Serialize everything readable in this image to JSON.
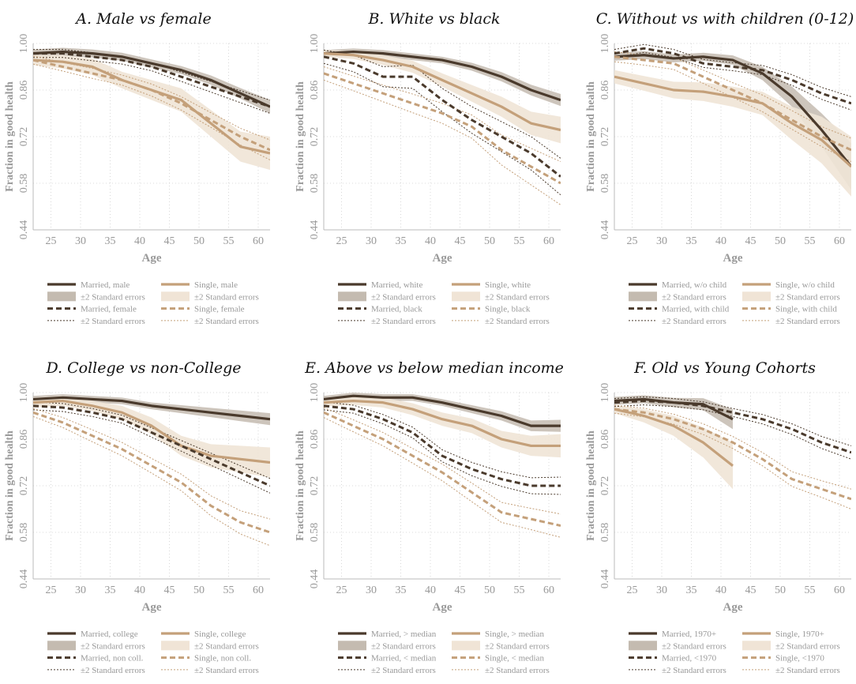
{
  "colors": {
    "married": "#4a3a2c",
    "single": "#c4a07a",
    "married_band": "#c4bbb0",
    "single_band": "#f0e4d6"
  },
  "common": {
    "ylabel": "Fraction in good health",
    "xlabel": "Age",
    "x_ticks": [
      "25",
      "30",
      "35",
      "40",
      "45",
      "50",
      "55",
      "60"
    ],
    "y_ticks": [
      "0.44",
      "0.58",
      "0.72",
      "0.86",
      "1.00"
    ],
    "xlim": [
      22,
      62
    ],
    "ylim": [
      0.44,
      1.0
    ],
    "grid": true
  },
  "chart_data": [
    {
      "type": "line",
      "title": "A. Male vs female",
      "xlabel": "Age",
      "ylabel": "Fraction in good health",
      "xlim": [
        22,
        62
      ],
      "ylim": [
        0.44,
        1.0
      ],
      "x": [
        22,
        27,
        32,
        37,
        42,
        47,
        52,
        57,
        62
      ],
      "legend": [
        "Married, male",
        "±2 Standard errors",
        "Married, female",
        "±2 Standard errors",
        "Single, male",
        "±2 Standard errors",
        "Single, female",
        "±2 Standard errors"
      ],
      "series": [
        {
          "name": "Married, male",
          "style": "solid-married",
          "values": [
            0.97,
            0.975,
            0.97,
            0.96,
            0.94,
            0.92,
            0.89,
            0.85,
            0.81
          ],
          "band": [
            0.012,
            0.012,
            0.012,
            0.012,
            0.012,
            0.012,
            0.014,
            0.016,
            0.02
          ]
        },
        {
          "name": "Married, female",
          "style": "dashed-married",
          "values": [
            0.97,
            0.97,
            0.96,
            0.95,
            0.93,
            0.9,
            0.87,
            0.84,
            0.81
          ],
          "band": [
            0.012,
            0.012,
            0.012,
            0.012,
            0.012,
            0.014,
            0.016,
            0.018,
            0.02
          ]
        },
        {
          "name": "Single, male",
          "style": "solid-single",
          "values": [
            0.95,
            0.945,
            0.93,
            0.89,
            0.86,
            0.83,
            0.76,
            0.69,
            0.67
          ],
          "band": [
            0.015,
            0.02,
            0.025,
            0.025,
            0.03,
            0.035,
            0.04,
            0.045,
            0.05
          ]
        },
        {
          "name": "Single, female",
          "style": "dashed-single",
          "values": [
            0.95,
            0.93,
            0.91,
            0.89,
            0.86,
            0.82,
            0.77,
            0.72,
            0.68
          ],
          "band": [
            0.012,
            0.013,
            0.015,
            0.015,
            0.018,
            0.02,
            0.022,
            0.025,
            0.03
          ]
        }
      ]
    },
    {
      "type": "line",
      "title": "B. White vs black",
      "xlabel": "Age",
      "ylabel": "Fraction in good health",
      "xlim": [
        22,
        62
      ],
      "ylim": [
        0.44,
        1.0
      ],
      "x": [
        22,
        27,
        32,
        37,
        42,
        47,
        52,
        57,
        62
      ],
      "legend": [
        "Married, white",
        "±2 Standard errors",
        "Married, black",
        "±2 Standard errors",
        "Single, white",
        "±2 Standard errors",
        "Single, black",
        "±2 Standard errors"
      ],
      "series": [
        {
          "name": "Married, white",
          "style": "solid-married",
          "values": [
            0.97,
            0.975,
            0.97,
            0.96,
            0.95,
            0.93,
            0.9,
            0.86,
            0.83
          ],
          "band": [
            0.01,
            0.01,
            0.01,
            0.01,
            0.01,
            0.012,
            0.014,
            0.016,
            0.018
          ]
        },
        {
          "name": "Married, black",
          "style": "dashed-married",
          "values": [
            0.96,
            0.94,
            0.9,
            0.9,
            0.83,
            0.77,
            0.72,
            0.67,
            0.6
          ],
          "band": [
            0.02,
            0.025,
            0.03,
            0.035,
            0.035,
            0.04,
            0.045,
            0.05,
            0.055
          ]
        },
        {
          "name": "Single, white",
          "style": "solid-single",
          "values": [
            0.97,
            0.965,
            0.95,
            0.93,
            0.89,
            0.85,
            0.81,
            0.76,
            0.74
          ],
          "band": [
            0.01,
            0.012,
            0.015,
            0.018,
            0.02,
            0.025,
            0.03,
            0.035,
            0.04
          ]
        },
        {
          "name": "Single, black",
          "style": "dashed-single",
          "values": [
            0.91,
            0.88,
            0.85,
            0.82,
            0.79,
            0.75,
            0.68,
            0.63,
            0.58
          ],
          "band": [
            0.02,
            0.022,
            0.025,
            0.028,
            0.03,
            0.035,
            0.045,
            0.055,
            0.065
          ]
        }
      ]
    },
    {
      "type": "line",
      "title": "C. Without vs with children (0-12)",
      "xlabel": "Age",
      "ylabel": "Fraction in good health",
      "xlim": [
        22,
        62
      ],
      "ylim": [
        0.44,
        1.0
      ],
      "x": [
        22,
        27,
        32,
        37,
        42,
        47,
        52,
        57,
        62
      ],
      "legend": [
        "Married, w/o child",
        "±2 Standard errors",
        "Married, with child",
        "±2 Standard errors",
        "Single, w/o child",
        "±2 Standard errors",
        "Single, with child",
        "±2 Standard errors"
      ],
      "series": [
        {
          "name": "Married, w/o child",
          "style": "solid-married",
          "values": [
            0.96,
            0.965,
            0.955,
            0.96,
            0.95,
            0.91,
            0.84,
            0.74,
            0.63
          ],
          "band": [
            0.012,
            0.012,
            0.012,
            0.012,
            0.014,
            0.02,
            0.03,
            0.05,
            0.07
          ]
        },
        {
          "name": "Married, with child",
          "style": "dashed-married",
          "values": [
            0.97,
            0.985,
            0.97,
            0.94,
            0.93,
            0.92,
            0.89,
            0.85,
            0.82
          ],
          "band": [
            0.012,
            0.012,
            0.012,
            0.012,
            0.012,
            0.014,
            0.016,
            0.018,
            0.02
          ]
        },
        {
          "name": "Single, w/o child",
          "style": "solid-single",
          "values": [
            0.9,
            0.88,
            0.86,
            0.855,
            0.84,
            0.82,
            0.76,
            0.71,
            0.63
          ],
          "band": [
            0.02,
            0.022,
            0.025,
            0.028,
            0.03,
            0.035,
            0.05,
            0.07,
            0.09
          ]
        },
        {
          "name": "Single, with child",
          "style": "dashed-single",
          "values": [
            0.96,
            0.95,
            0.94,
            0.9,
            0.86,
            0.82,
            0.77,
            0.72,
            0.68
          ],
          "band": [
            0.015,
            0.015,
            0.018,
            0.02,
            0.022,
            0.025,
            0.028,
            0.03,
            0.035
          ]
        }
      ]
    },
    {
      "type": "line",
      "title": "D. College vs non-College",
      "xlabel": "Age",
      "ylabel": "Fraction in good health",
      "xlim": [
        22,
        62
      ],
      "ylim": [
        0.44,
        1.0
      ],
      "x": [
        22,
        27,
        32,
        37,
        42,
        47,
        52,
        57,
        62
      ],
      "legend": [
        "Married, college",
        "±2 Standard errors",
        "Married, non coll.",
        "±2 Standard errors",
        "Single, college",
        "±2 Standard errors",
        "Single, non coll.",
        "±2 Standard errors"
      ],
      "series": [
        {
          "name": "Married, college",
          "style": "solid-married",
          "values": [
            0.98,
            0.985,
            0.98,
            0.975,
            0.96,
            0.95,
            0.94,
            0.93,
            0.92
          ],
          "band": [
            0.01,
            0.01,
            0.01,
            0.01,
            0.01,
            0.012,
            0.014,
            0.016,
            0.018
          ]
        },
        {
          "name": "Married, non coll.",
          "style": "dashed-married",
          "values": [
            0.96,
            0.955,
            0.94,
            0.92,
            0.88,
            0.84,
            0.8,
            0.76,
            0.72
          ],
          "band": [
            0.012,
            0.012,
            0.012,
            0.012,
            0.014,
            0.016,
            0.018,
            0.02,
            0.022
          ]
        },
        {
          "name": "Single, college",
          "style": "solid-single",
          "values": [
            0.97,
            0.975,
            0.96,
            0.94,
            0.9,
            0.84,
            0.81,
            0.8,
            0.79
          ],
          "band": [
            0.015,
            0.015,
            0.015,
            0.02,
            0.025,
            0.03,
            0.035,
            0.04,
            0.045
          ]
        },
        {
          "name": "Single, non coll.",
          "style": "dashed-single",
          "values": [
            0.94,
            0.91,
            0.87,
            0.83,
            0.78,
            0.73,
            0.66,
            0.61,
            0.58
          ],
          "band": [
            0.012,
            0.015,
            0.018,
            0.02,
            0.022,
            0.025,
            0.03,
            0.035,
            0.04
          ]
        }
      ]
    },
    {
      "type": "line",
      "title": "E. Above vs below median income",
      "xlabel": "Age",
      "ylabel": "Fraction in good health",
      "xlim": [
        22,
        62
      ],
      "ylim": [
        0.44,
        1.0
      ],
      "x": [
        22,
        27,
        32,
        37,
        42,
        47,
        52,
        57,
        62
      ],
      "legend": [
        "Married, > median",
        "±2 Standard errors",
        "Married, < median",
        "±2 Standard errors",
        "Single, > median",
        "±2 Standard errors",
        "Single, < median",
        "±2 Standard errors"
      ],
      "series": [
        {
          "name": "Married, > median",
          "style": "solid-married",
          "values": [
            0.98,
            0.99,
            0.985,
            0.985,
            0.97,
            0.95,
            0.93,
            0.9,
            0.9
          ],
          "band": [
            0.01,
            0.01,
            0.01,
            0.01,
            0.01,
            0.012,
            0.014,
            0.016,
            0.018
          ]
        },
        {
          "name": "Married, < median",
          "style": "dashed-married",
          "values": [
            0.96,
            0.95,
            0.92,
            0.88,
            0.81,
            0.77,
            0.74,
            0.72,
            0.72
          ],
          "band": [
            0.012,
            0.012,
            0.014,
            0.016,
            0.018,
            0.02,
            0.022,
            0.024,
            0.026
          ]
        },
        {
          "name": "Single, > median",
          "style": "solid-single",
          "values": [
            0.97,
            0.975,
            0.97,
            0.95,
            0.92,
            0.9,
            0.86,
            0.84,
            0.84
          ],
          "band": [
            0.012,
            0.012,
            0.015,
            0.018,
            0.02,
            0.022,
            0.025,
            0.03,
            0.035
          ]
        },
        {
          "name": "Single, < median",
          "style": "dashed-single",
          "values": [
            0.94,
            0.9,
            0.86,
            0.81,
            0.76,
            0.7,
            0.64,
            0.62,
            0.6
          ],
          "band": [
            0.015,
            0.018,
            0.02,
            0.022,
            0.025,
            0.028,
            0.03,
            0.032,
            0.035
          ]
        }
      ]
    },
    {
      "type": "line",
      "title": "F. Old vs Young Cohorts",
      "xlabel": "Age",
      "ylabel": "Fraction in good health",
      "xlim": [
        22,
        62
      ],
      "ylim": [
        0.44,
        1.0
      ],
      "x": [
        22,
        27,
        32,
        37,
        42,
        47,
        52,
        57,
        62
      ],
      "legend": [
        "Married, 1970+",
        "±2 Standard errors",
        "Married, <1970",
        "±2 Standard errors",
        "Single, 1970+",
        "±2 Standard errors",
        "Single, <1970",
        "±2 Standard errors"
      ],
      "series": [
        {
          "name": "Married, 1970+",
          "style": "solid-married",
          "values": [
            0.975,
            0.98,
            0.97,
            0.965,
            0.92,
            null,
            null,
            null,
            null
          ],
          "band": [
            0.012,
            0.012,
            0.014,
            0.018,
            0.03,
            null,
            null,
            null,
            null
          ]
        },
        {
          "name": "Married, <1970",
          "style": "dashed-married",
          "values": [
            0.97,
            0.975,
            0.97,
            0.96,
            0.94,
            0.92,
            0.89,
            0.85,
            0.82
          ],
          "band": [
            0.012,
            0.012,
            0.012,
            0.012,
            0.012,
            0.014,
            0.016,
            0.018,
            0.02
          ]
        },
        {
          "name": "Single, 1970+",
          "style": "solid-single",
          "values": [
            0.95,
            0.93,
            0.9,
            0.85,
            0.78,
            null,
            null,
            null,
            null
          ],
          "band": [
            0.012,
            0.02,
            0.03,
            0.045,
            0.07,
            null,
            null,
            null,
            null
          ]
        },
        {
          "name": "Single, <1970",
          "style": "dashed-single",
          "values": [
            0.95,
            0.94,
            0.92,
            0.89,
            0.85,
            0.8,
            0.74,
            0.71,
            0.68
          ],
          "band": [
            0.012,
            0.013,
            0.015,
            0.016,
            0.018,
            0.02,
            0.022,
            0.025,
            0.03
          ]
        }
      ]
    }
  ]
}
